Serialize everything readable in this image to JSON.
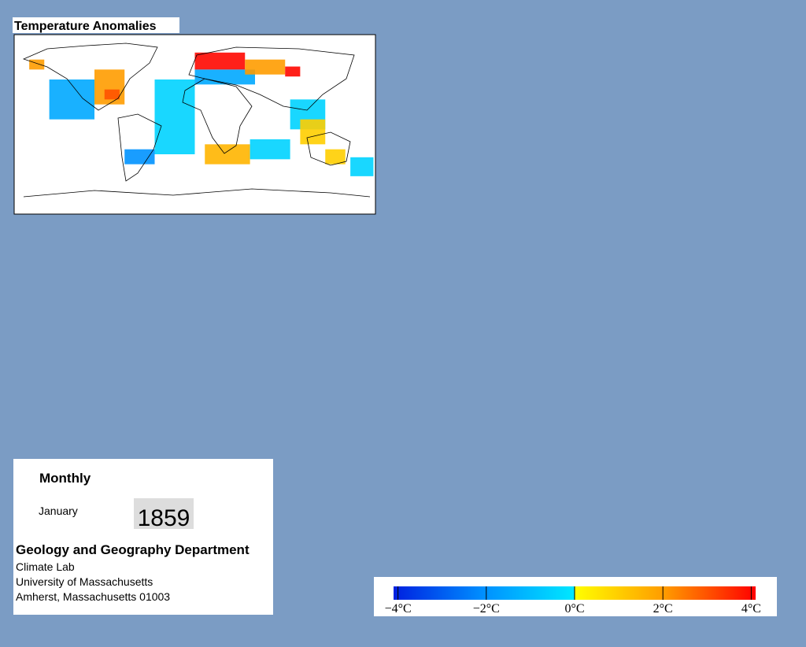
{
  "map": {
    "title": "Temperature Anomalies",
    "lon_range": [
      -180,
      180
    ],
    "lat_range": [
      -90,
      90
    ],
    "cells": [
      {
        "lon": [
          -145,
          -100
        ],
        "lat": [
          5,
          45
        ],
        "value": -1.5
      },
      {
        "lon": [
          -100,
          -70
        ],
        "lat": [
          20,
          55
        ],
        "value": 2
      },
      {
        "lon": [
          -90,
          -75
        ],
        "lat": [
          25,
          35
        ],
        "value": 3
      },
      {
        "lon": [
          -40,
          0
        ],
        "lat": [
          -30,
          45
        ],
        "value": -0.5
      },
      {
        "lon": [
          -70,
          -40
        ],
        "lat": [
          -40,
          -25
        ],
        "value": -2
      },
      {
        "lon": [
          0,
          60
        ],
        "lat": [
          40,
          55
        ],
        "value": -1.5
      },
      {
        "lon": [
          0,
          50
        ],
        "lat": [
          55,
          72
        ],
        "value": 4
      },
      {
        "lon": [
          50,
          90
        ],
        "lat": [
          50,
          65
        ],
        "value": 2
      },
      {
        "lon": [
          90,
          105
        ],
        "lat": [
          48,
          58
        ],
        "value": 4
      },
      {
        "lon": [
          95,
          130
        ],
        "lat": [
          -5,
          25
        ],
        "value": -0.5
      },
      {
        "lon": [
          105,
          130
        ],
        "lat": [
          -20,
          5
        ],
        "value": 1
      },
      {
        "lon": [
          10,
          55
        ],
        "lat": [
          -40,
          -20
        ],
        "value": 1.5
      },
      {
        "lon": [
          55,
          95
        ],
        "lat": [
          -35,
          -15
        ],
        "value": -0.5
      },
      {
        "lon": [
          130,
          150
        ],
        "lat": [
          -40,
          -25
        ],
        "value": 1
      },
      {
        "lon": [
          155,
          178
        ],
        "lat": [
          -52,
          -33
        ],
        "value": -0.5
      },
      {
        "lon": [
          -165,
          -150
        ],
        "lat": [
          55,
          65
        ],
        "value": 2
      }
    ]
  },
  "panel": {
    "frequency": "Monthly",
    "month": "January",
    "year": "1859",
    "department": "Geology and Geography Department",
    "lines": [
      "Climate Lab",
      "University of Massachusetts",
      "Amherst, Massachusetts 01003"
    ]
  },
  "colorbar": {
    "lim": [
      -4.1,
      4.1
    ],
    "ticks": [
      {
        "value": -4,
        "label": "−4°C"
      },
      {
        "value": -2,
        "label": "−2°C"
      },
      {
        "value": 0,
        "label": "0°C"
      },
      {
        "value": 2,
        "label": "2°C"
      },
      {
        "value": 4,
        "label": "4°C"
      }
    ]
  }
}
